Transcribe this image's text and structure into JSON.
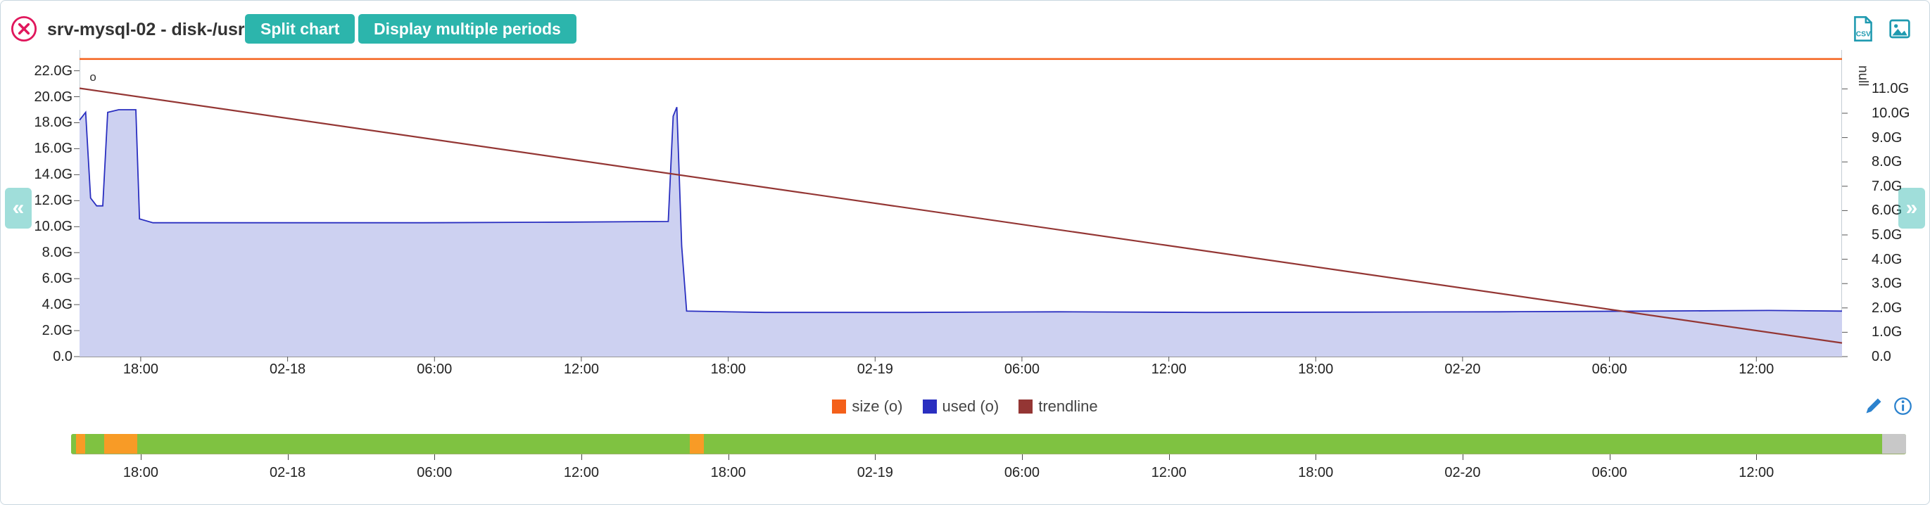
{
  "colors": {
    "accent_teal": "#2cb5ac",
    "close_red": "#e0175c",
    "icon_blue": "#2b82ce",
    "export_teal": "#1f9ab0"
  },
  "header": {
    "title": "srv-mysql-02 - disk-/usr",
    "split_chart_label": "Split chart",
    "multi_periods_label": "Display multiple periods"
  },
  "nav": {
    "prev_label": "«",
    "next_label": "»"
  },
  "legend": {
    "items": [
      {
        "label": "size (o)",
        "color": "#f4601a"
      },
      {
        "label": "used (o)",
        "color": "#2a2fc0"
      },
      {
        "label": "trendline",
        "color": "#943634"
      }
    ]
  },
  "chart_data": {
    "type": "area",
    "title": "srv-mysql-02 - disk-/usr",
    "x_axis": {
      "start": "02-17 15:30",
      "end": "02-20 15:30",
      "span_hours": 72,
      "ticks": [
        {
          "hour": 2.5,
          "label": "18:00"
        },
        {
          "hour": 8.5,
          "label": "02-18"
        },
        {
          "hour": 14.5,
          "label": "06:00"
        },
        {
          "hour": 20.5,
          "label": "12:00"
        },
        {
          "hour": 26.5,
          "label": "18:00"
        },
        {
          "hour": 32.5,
          "label": "02-19"
        },
        {
          "hour": 38.5,
          "label": "06:00"
        },
        {
          "hour": 44.5,
          "label": "12:00"
        },
        {
          "hour": 50.5,
          "label": "18:00"
        },
        {
          "hour": 56.5,
          "label": "02-20"
        },
        {
          "hour": 62.5,
          "label": "06:00"
        },
        {
          "hour": 68.5,
          "label": "12:00"
        }
      ]
    },
    "y_left": {
      "min": 0,
      "max": 23.6,
      "unit": "G",
      "ticks": [
        {
          "v": 22,
          "label": "22.0G"
        },
        {
          "v": 20,
          "label": "20.0G"
        },
        {
          "v": 18,
          "label": "18.0G"
        },
        {
          "v": 16,
          "label": "16.0G"
        },
        {
          "v": 14,
          "label": "14.0G"
        },
        {
          "v": 12,
          "label": "12.0G"
        },
        {
          "v": 10,
          "label": "10.0G"
        },
        {
          "v": 8,
          "label": "8.0G"
        },
        {
          "v": 6,
          "label": "6.0G"
        },
        {
          "v": 4,
          "label": "4.0G"
        },
        {
          "v": 2,
          "label": "2.0G"
        },
        {
          "v": 0,
          "label": "0.0"
        }
      ]
    },
    "y_right": {
      "min": 0,
      "max": 12.6,
      "unit": "G",
      "label": "null",
      "ticks": [
        {
          "v": 11,
          "label": "11.0G"
        },
        {
          "v": 10,
          "label": "10.0G"
        },
        {
          "v": 9,
          "label": "9.0G"
        },
        {
          "v": 8,
          "label": "8.0G"
        },
        {
          "v": 7,
          "label": "7.0G"
        },
        {
          "v": 6,
          "label": "6.0G"
        },
        {
          "v": 5,
          "label": "5.0G"
        },
        {
          "v": 4,
          "label": "4.0G"
        },
        {
          "v": 3,
          "label": "3.0G"
        },
        {
          "v": 2,
          "label": "2.0G"
        },
        {
          "v": 1,
          "label": "1.0G"
        },
        {
          "v": 0,
          "label": "0.0"
        }
      ]
    },
    "series": [
      {
        "id": "used",
        "name": "used (o)",
        "type": "area",
        "axis": "left",
        "color": "#2a2fc0",
        "fill": "#cdd1f1",
        "width": 1.8,
        "points": [
          [
            0,
            18.2
          ],
          [
            0.25,
            18.8
          ],
          [
            0.45,
            12.2
          ],
          [
            0.7,
            11.6
          ],
          [
            0.95,
            11.6
          ],
          [
            1.15,
            18.8
          ],
          [
            1.6,
            19.0
          ],
          [
            2.3,
            19.0
          ],
          [
            2.45,
            10.6
          ],
          [
            3,
            10.3
          ],
          [
            8,
            10.3
          ],
          [
            14,
            10.3
          ],
          [
            20,
            10.35
          ],
          [
            24.05,
            10.4
          ],
          [
            24.25,
            18.5
          ],
          [
            24.4,
            19.2
          ],
          [
            24.6,
            8.5
          ],
          [
            24.8,
            3.5
          ],
          [
            28,
            3.4
          ],
          [
            34,
            3.4
          ],
          [
            40,
            3.45
          ],
          [
            46,
            3.4
          ],
          [
            52,
            3.42
          ],
          [
            58,
            3.45
          ],
          [
            64,
            3.5
          ],
          [
            69,
            3.55
          ],
          [
            72,
            3.5
          ]
        ]
      },
      {
        "id": "trendline",
        "name": "trendline",
        "type": "line",
        "axis": "left",
        "color": "#943634",
        "width": 2.2,
        "points": [
          [
            0,
            20.65
          ],
          [
            72,
            1.05
          ]
        ]
      },
      {
        "id": "size",
        "name": "size (o)",
        "type": "line",
        "axis": "left",
        "color": "#f4601a",
        "width": 2.5,
        "points": [
          [
            0,
            22.9
          ],
          [
            72,
            22.9
          ]
        ]
      }
    ],
    "annotations": [
      {
        "label": "o",
        "hour": 0.55,
        "value": 21.5
      }
    ]
  },
  "timeline": {
    "base_color": "#7fc241",
    "segments": [
      {
        "from": 0,
        "to": 0.25,
        "color": "#7fc241"
      },
      {
        "from": 0.25,
        "to": 0.75,
        "color": "#f89b26"
      },
      {
        "from": 0.75,
        "to": 1.8,
        "color": "#7fc241"
      },
      {
        "from": 1.8,
        "to": 3.6,
        "color": "#f89b26"
      },
      {
        "from": 3.6,
        "to": 33.7,
        "color": "#7fc241"
      },
      {
        "from": 33.7,
        "to": 34.5,
        "color": "#f89b26"
      },
      {
        "from": 34.5,
        "to": 98.7,
        "color": "#7fc241"
      },
      {
        "from": 98.7,
        "to": 100,
        "color": "#c8c8c8"
      }
    ]
  }
}
